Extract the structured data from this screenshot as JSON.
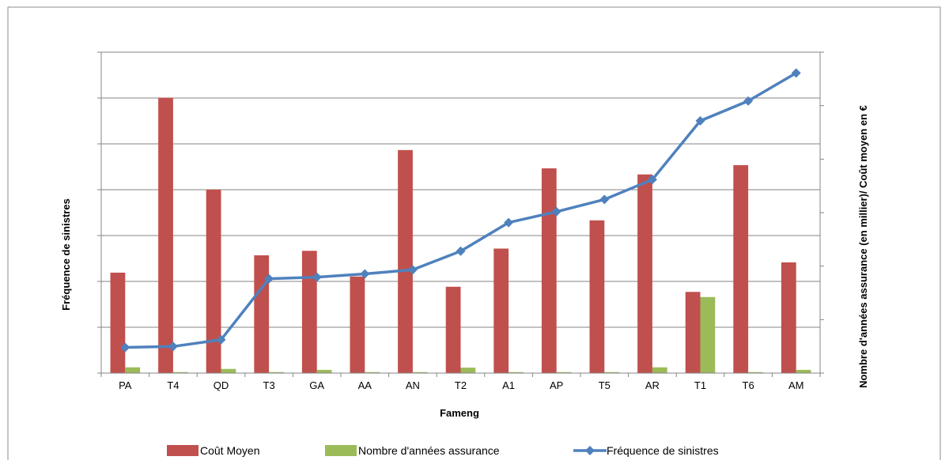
{
  "chart_data": {
    "type": "bar",
    "categories": [
      "PA",
      "T4",
      "QD",
      "T3",
      "GA",
      "AA",
      "AN",
      "T2",
      "A1",
      "AP",
      "T5",
      "AR",
      "T1",
      "T6",
      "AM"
    ],
    "xlabel": "Fameng",
    "ylabel_left": "Fréquence de sinistres",
    "ylabel_right": "Nombre d'années assurance  (en millier)/ Coût moyen en €",
    "series": [
      {
        "name": "Coût Moyen",
        "kind": "bar",
        "axis": "right",
        "color": "#c0504d",
        "values": [
          0.313,
          0.858,
          0.572,
          0.367,
          0.381,
          0.301,
          0.695,
          0.269,
          0.388,
          0.638,
          0.476,
          0.619,
          0.253,
          0.648,
          0.345
        ]
      },
      {
        "name": "Nombre d'années assurance",
        "kind": "bar",
        "axis": "right",
        "color": "#9bbb59",
        "values": [
          0.018,
          0.003,
          0.013,
          0.003,
          0.01,
          0.003,
          0.003,
          0.017,
          0.003,
          0.003,
          0.003,
          0.018,
          0.237,
          0.003,
          0.01
        ]
      },
      {
        "name": "Fréquence de sinistres",
        "kind": "line",
        "axis": "left",
        "color": "#4f81bd",
        "values": [
          0.08,
          0.083,
          0.104,
          0.294,
          0.299,
          0.309,
          0.322,
          0.38,
          0.469,
          0.503,
          0.541,
          0.603,
          0.786,
          0.848,
          0.935
        ]
      }
    ],
    "ylim_left": [
      0,
      1
    ],
    "ylim_right": [
      0,
      1
    ],
    "left_ticks": 7,
    "right_ticks": 6,
    "grid": true,
    "legend_position": "bottom"
  }
}
